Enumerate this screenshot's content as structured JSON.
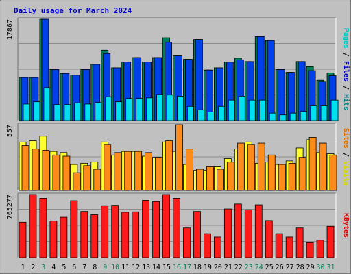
{
  "chart_data": {
    "type": "bar",
    "title": "Daily usage for March 2024",
    "days": [
      "1",
      "2",
      "3",
      "4",
      "5",
      "6",
      "7",
      "8",
      "9",
      "10",
      "11",
      "12",
      "13",
      "14",
      "15",
      "16",
      "17",
      "18",
      "19",
      "20",
      "21",
      "22",
      "23",
      "24",
      "25",
      "26",
      "27",
      "28",
      "29",
      "30",
      "31"
    ],
    "weekend_days": [
      "3",
      "9",
      "10",
      "16",
      "17",
      "23",
      "24",
      "30",
      "31"
    ],
    "panels": [
      {
        "name": "hits-files-pages",
        "ymax": 17867,
        "ymax_label": "17867",
        "side_label": [
          {
            "text": "Pages",
            "color": "#00c8c8"
          },
          {
            "text": " / ",
            "color": "#000000"
          },
          {
            "text": "Files",
            "color": "#0000c8"
          },
          {
            "text": " / ",
            "color": "#000000"
          },
          {
            "text": "Hits",
            "color": "#008080"
          }
        ],
        "series": [
          {
            "name": "Hits",
            "color": "#00805a",
            "values": [
              7600,
              7600,
              17867,
              9000,
              8300,
              8000,
              9000,
              9900,
              12400,
              9300,
              10300,
              11100,
              10300,
              11100,
              14600,
              11400,
              10800,
              14300,
              8900,
              9300,
              10300,
              11000,
              10400,
              14800,
              14100,
              9000,
              8500,
              10400,
              9500,
              7100,
              8400
            ]
          },
          {
            "name": "Files",
            "color": "#0040e8",
            "values": [
              7600,
              7600,
              17867,
              9000,
              8300,
              8000,
              9000,
              9900,
              11800,
              9300,
              10300,
              11100,
              10300,
              11100,
              13800,
              11400,
              10800,
              14300,
              8900,
              9300,
              10300,
              10700,
              10400,
              14800,
              14100,
              9000,
              8500,
              10400,
              8800,
              6900,
              7900
            ]
          },
          {
            "name": "Pages",
            "color": "#00e0f0",
            "values": [
              2900,
              3300,
              5800,
              2800,
              2800,
              3100,
              2900,
              3200,
              4200,
              3300,
              3900,
              3900,
              4000,
              4600,
              4500,
              4300,
              2500,
              1900,
              1500,
              2500,
              3600,
              4300,
              3600,
              3600,
              1300,
              1000,
              1300,
              1600,
              2600,
              2600,
              3600
            ]
          }
        ]
      },
      {
        "name": "visits-sites",
        "ymax": 557,
        "ymax_label": "557",
        "side_label": [
          {
            "text": "Sites",
            "color": "#e07000"
          },
          {
            "text": " / ",
            "color": "#000000"
          },
          {
            "text": "Visits",
            "color": "#d8d800"
          }
        ],
        "series": [
          {
            "name": "Visits",
            "color": "#ffff30",
            "values": [
              410,
              420,
              460,
              330,
              320,
              220,
              230,
              240,
              410,
              300,
              330,
              330,
              290,
              280,
              410,
              330,
              220,
              170,
              170,
              200,
              270,
              350,
              410,
              230,
              240,
              220,
              250,
              360,
              430,
              320,
              310
            ]
          },
          {
            "name": "Sites",
            "color": "#ff8c1a",
            "values": [
              380,
              350,
              340,
              300,
              290,
              150,
              210,
              180,
              390,
              320,
              330,
              330,
              320,
              280,
              420,
              557,
              350,
              180,
              200,
              180,
              240,
              400,
              390,
              400,
              300,
              220,
              230,
              280,
              450,
              400,
              300
            ]
          }
        ]
      },
      {
        "name": "kbytes",
        "ymax": 765277,
        "ymax_label": "765277",
        "side_label": [
          {
            "text": "KBytes",
            "color": "#e00000"
          }
        ],
        "series": [
          {
            "name": "KBytes",
            "color": "#ff1a1a",
            "values": [
              430000,
              765277,
              720000,
              445000,
              490000,
              690000,
              560000,
              520000,
              630000,
              635000,
              550000,
              555000,
              695000,
              680000,
              765277,
              720000,
              360000,
              560000,
              290000,
              250000,
              590000,
              650000,
              580000,
              640000,
              450000,
              290000,
              250000,
              360000,
              180000,
              210000,
              380000
            ]
          }
        ]
      }
    ]
  }
}
